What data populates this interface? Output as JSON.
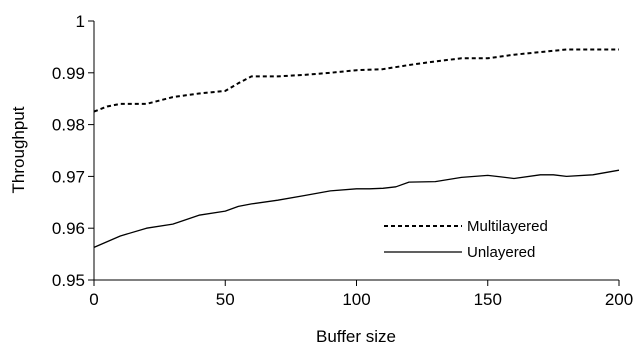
{
  "chart_data": {
    "type": "line",
    "xlabel": "Buffer size",
    "ylabel": "Throughput",
    "xlim": [
      0,
      200
    ],
    "ylim": [
      0.95,
      1.0
    ],
    "xticks": [
      0,
      50,
      100,
      150,
      200
    ],
    "yticks": [
      0.95,
      0.96,
      0.97,
      0.98,
      0.99,
      1.0
    ],
    "xtick_labels": [
      "0",
      "50",
      "100",
      "150",
      "200"
    ],
    "ytick_labels": [
      "0.95",
      "0.96",
      "0.97",
      "0.98",
      "0.99",
      "1"
    ],
    "grid": false,
    "legend_position": "bottom-right",
    "series": [
      {
        "name": "Multilayered",
        "line_style": "dotted",
        "x": [
          0,
          5,
          10,
          20,
          30,
          40,
          50,
          55,
          60,
          65,
          70,
          80,
          90,
          100,
          110,
          120,
          130,
          140,
          150,
          160,
          170,
          180,
          190,
          200
        ],
        "y": [
          0.9825,
          0.9835,
          0.984,
          0.984,
          0.9853,
          0.986,
          0.9865,
          0.988,
          0.9893,
          0.9893,
          0.9893,
          0.9896,
          0.99,
          0.9905,
          0.9907,
          0.9915,
          0.9922,
          0.9928,
          0.9928,
          0.9935,
          0.994,
          0.9945,
          0.9945,
          0.9945
        ]
      },
      {
        "name": "Unlayered",
        "line_style": "solid",
        "x": [
          0,
          10,
          20,
          30,
          33,
          40,
          50,
          55,
          60,
          70,
          80,
          90,
          100,
          105,
          110,
          115,
          120,
          130,
          140,
          150,
          155,
          160,
          170,
          175,
          180,
          190,
          200
        ],
        "y": [
          0.9563,
          0.9585,
          0.96,
          0.9608,
          0.9613,
          0.9625,
          0.9633,
          0.9642,
          0.9647,
          0.9654,
          0.9663,
          0.9672,
          0.9676,
          0.9676,
          0.9677,
          0.968,
          0.9689,
          0.969,
          0.9698,
          0.9702,
          0.9699,
          0.9696,
          0.9703,
          0.9703,
          0.97,
          0.9703,
          0.9712
        ]
      }
    ]
  }
}
